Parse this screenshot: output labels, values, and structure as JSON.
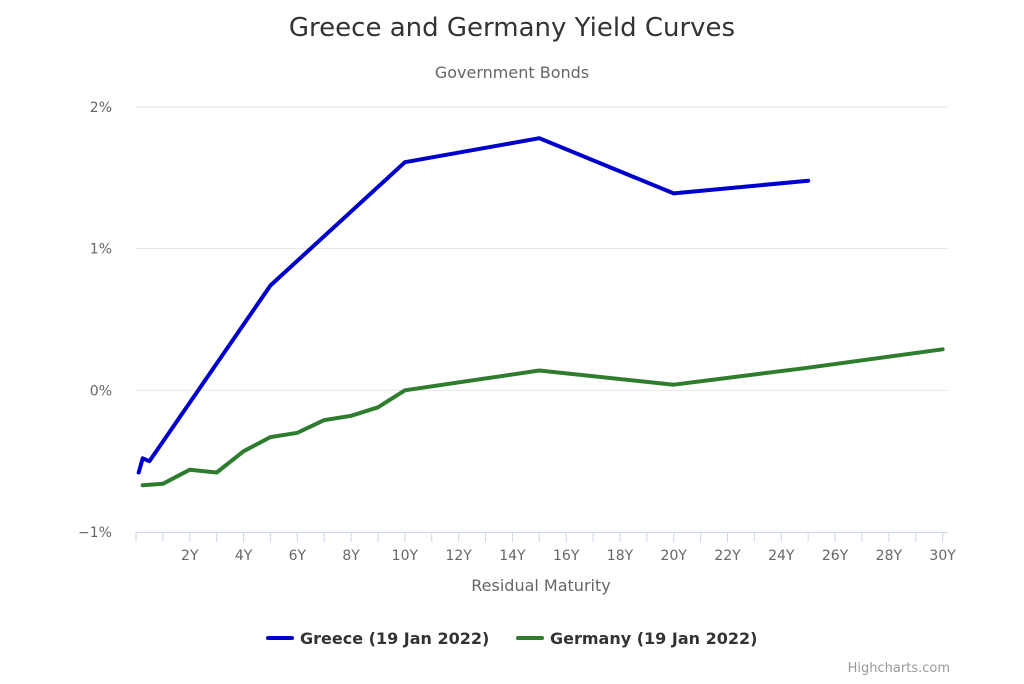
{
  "chart_data": {
    "type": "line",
    "title": "Greece and Germany Yield Curves",
    "subtitle": "Government Bonds",
    "xlabel": "Residual Maturity",
    "ylabel": "",
    "x_tick_labels": [
      "2Y",
      "4Y",
      "6Y",
      "8Y",
      "10Y",
      "12Y",
      "14Y",
      "16Y",
      "18Y",
      "20Y",
      "22Y",
      "24Y",
      "26Y",
      "28Y",
      "30Y"
    ],
    "x_tick_values": [
      2,
      4,
      6,
      8,
      10,
      12,
      14,
      16,
      18,
      20,
      22,
      24,
      26,
      28,
      30
    ],
    "y_tick_labels": [
      "−1%",
      "0%",
      "1%",
      "2%"
    ],
    "y_tick_values": [
      -1,
      0,
      1,
      2
    ],
    "xlim": [
      0,
      30.2
    ],
    "ylim": [
      -1,
      2
    ],
    "grid": "horizontal",
    "legend_position": "bottom-center",
    "series": [
      {
        "name": "Greece (19 Jan 2022)",
        "color": "#0000cc",
        "x": [
          0.1,
          0.25,
          0.5,
          5,
          10,
          15,
          20,
          25
        ],
        "y": [
          -0.58,
          -0.48,
          -0.5,
          0.74,
          1.61,
          1.78,
          1.39,
          1.48
        ]
      },
      {
        "name": "Germany (19 Jan 2022)",
        "color": "#2e7d2e",
        "x": [
          0.25,
          1,
          2,
          3,
          4,
          5,
          6,
          7,
          8,
          9,
          10,
          15,
          20,
          25,
          30
        ],
        "y": [
          -0.67,
          -0.66,
          -0.56,
          -0.58,
          -0.43,
          -0.33,
          -0.3,
          -0.21,
          -0.18,
          -0.12,
          0.0,
          0.14,
          0.04,
          0.16,
          0.29
        ]
      }
    ]
  },
  "credits": "Highcharts.com"
}
